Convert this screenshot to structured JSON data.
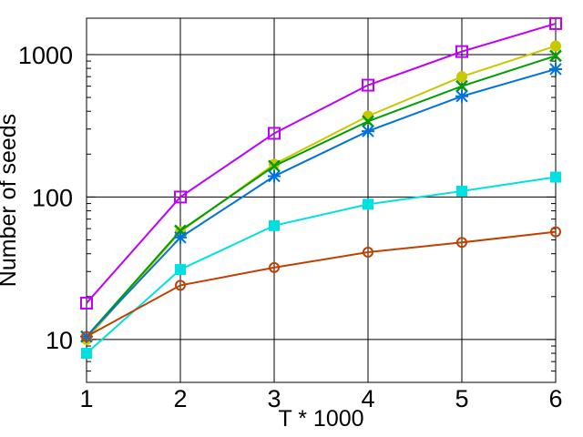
{
  "chart_data": {
    "type": "line",
    "title": "",
    "xlabel": "T * 1000",
    "ylabel": "Number of seeds",
    "xlim": [
      1,
      6
    ],
    "ylim": [
      5,
      1800
    ],
    "yscale": "log",
    "grid": true,
    "x": [
      1,
      2,
      3,
      4,
      5,
      6
    ],
    "x_tick_labels": [
      "1",
      "2",
      "3",
      "4",
      "5",
      "6"
    ],
    "y_ticks": [
      10,
      100,
      1000
    ],
    "y_tick_labels": [
      "10",
      "100",
      "1000"
    ],
    "series": [
      {
        "color": "#c000ff",
        "marker": "open-square",
        "values": [
          18,
          100,
          280,
          610,
          1050,
          1650
        ]
      },
      {
        "color": "#c8c800",
        "marker": "filled-circle",
        "values": [
          10,
          57,
          170,
          370,
          700,
          1150
        ]
      },
      {
        "color": "#009e00",
        "marker": "x",
        "values": [
          10.5,
          58,
          165,
          340,
          600,
          980
        ]
      },
      {
        "color": "#0072e0",
        "marker": "asterisk",
        "values": [
          10.5,
          52,
          140,
          290,
          510,
          790
        ]
      },
      {
        "color": "#00e0e0",
        "marker": "filled-square",
        "values": [
          8,
          31,
          63,
          89,
          110,
          138
        ]
      },
      {
        "color": "#c04000",
        "marker": "open-circle",
        "values": [
          10.5,
          24,
          32,
          41,
          48,
          57
        ]
      }
    ]
  }
}
